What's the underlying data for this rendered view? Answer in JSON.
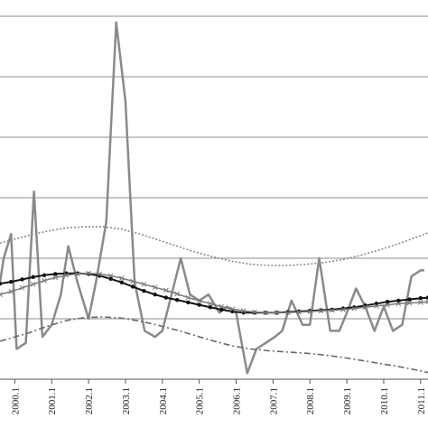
{
  "chart_data": {
    "type": "line",
    "title": "",
    "xlabel": "",
    "ylabel": "",
    "x_tick_labels": [
      "2000.1",
      "2001.1",
      "2002.1",
      "2003.1",
      "2004.1",
      "2005.1",
      "2006.1",
      "2007.1",
      "2008.1",
      "2009.1",
      "2010.1",
      "2011.1"
    ],
    "x_range": [
      1999.7,
      2011.3
    ],
    "ylim": [
      0,
      6
    ],
    "grid": true,
    "legend": "none",
    "series": [
      {
        "style": "solid-gray",
        "color": "#8a8a8a",
        "x": [
          1999.7,
          1999.8,
          2000.0,
          2000.15,
          2000.4,
          2000.62,
          2000.85,
          2001.1,
          2001.35,
          2001.55,
          2001.8,
          2002.1,
          2002.3,
          2002.58,
          2002.85,
          2003.1,
          2003.35,
          2003.62,
          2003.9,
          2004.1,
          2004.35,
          2004.6,
          2004.85,
          2005.1,
          2005.35,
          2005.65,
          2005.85,
          2006.1,
          2006.4,
          2006.65,
          2006.9,
          2007.15,
          2007.35,
          2007.6,
          2007.9,
          2008.1,
          2008.35,
          2008.65,
          2008.9,
          2009.1,
          2009.35,
          2009.6,
          2009.85,
          2010.1,
          2010.35,
          2010.6,
          2010.85,
          2011.1,
          2011.2
        ],
        "y": [
          1.6,
          2.0,
          2.4,
          0.5,
          0.6,
          3.1,
          0.7,
          0.9,
          1.4,
          2.2,
          1.6,
          1.0,
          1.6,
          2.6,
          5.9,
          4.6,
          1.6,
          0.8,
          0.7,
          0.8,
          1.4,
          2.0,
          1.4,
          1.3,
          1.4,
          1.1,
          1.2,
          1.1,
          0.1,
          0.5,
          0.6,
          0.7,
          0.8,
          1.3,
          0.9,
          0.9,
          2.0,
          0.8,
          0.8,
          1.1,
          1.5,
          1.2,
          0.8,
          1.2,
          0.8,
          0.9,
          1.7,
          1.8,
          1.8
        ]
      },
      {
        "style": "solid-black-dots",
        "color": "#111111",
        "x": [
          1999.7,
          2000.0,
          2000.3,
          2000.6,
          2000.9,
          2001.2,
          2001.5,
          2001.8,
          2002.1,
          2002.4,
          2002.7,
          2003.0,
          2003.3,
          2003.6,
          2003.9,
          2004.2,
          2004.5,
          2004.8,
          2005.1,
          2005.4,
          2005.7,
          2006.0,
          2006.3,
          2006.6,
          2006.9,
          2007.2,
          2007.5,
          2007.8,
          2008.1,
          2008.4,
          2008.7,
          2009.0,
          2009.3,
          2009.6,
          2009.9,
          2010.2,
          2010.5,
          2010.8,
          2011.1,
          2011.3
        ],
        "y": [
          1.58,
          1.61,
          1.65,
          1.69,
          1.72,
          1.74,
          1.75,
          1.75,
          1.74,
          1.71,
          1.66,
          1.6,
          1.53,
          1.46,
          1.4,
          1.35,
          1.31,
          1.27,
          1.23,
          1.19,
          1.15,
          1.12,
          1.1,
          1.1,
          1.1,
          1.1,
          1.11,
          1.12,
          1.13,
          1.14,
          1.15,
          1.17,
          1.19,
          1.22,
          1.25,
          1.28,
          1.3,
          1.32,
          1.34,
          1.35
        ]
      },
      {
        "style": "solid-gray-crosses",
        "color": "#7a7a7a",
        "x": [
          1999.7,
          2000.0,
          2000.3,
          2000.6,
          2000.9,
          2001.2,
          2001.5,
          2001.8,
          2002.1,
          2002.4,
          2002.7,
          2003.0,
          2003.3,
          2003.6,
          2003.9,
          2004.2,
          2004.5,
          2004.8,
          2005.1,
          2005.4,
          2005.7,
          2006.0,
          2006.3,
          2006.6,
          2006.9,
          2007.2,
          2007.5,
          2007.8,
          2008.1,
          2008.4,
          2008.7,
          2009.0,
          2009.3,
          2009.6,
          2009.9,
          2010.2,
          2010.5,
          2010.8,
          2011.1,
          2011.3
        ],
        "y": [
          1.4,
          1.45,
          1.51,
          1.57,
          1.63,
          1.68,
          1.72,
          1.74,
          1.75,
          1.74,
          1.71,
          1.67,
          1.62,
          1.57,
          1.52,
          1.47,
          1.41,
          1.35,
          1.3,
          1.25,
          1.2,
          1.16,
          1.13,
          1.11,
          1.1,
          1.1,
          1.1,
          1.11,
          1.12,
          1.13,
          1.14,
          1.15,
          1.17,
          1.19,
          1.21,
          1.23,
          1.25,
          1.26,
          1.27,
          1.28
        ]
      },
      {
        "style": "dotted-gray",
        "color": "#8a8a8a",
        "x": [
          1999.7,
          2000.0,
          2000.5,
          2001.0,
          2001.5,
          2002.0,
          2002.5,
          2003.0,
          2003.5,
          2004.0,
          2004.5,
          2005.0,
          2005.5,
          2006.0,
          2006.5,
          2007.0,
          2007.5,
          2008.0,
          2008.5,
          2009.0,
          2009.5,
          2010.0,
          2010.5,
          2011.0,
          2011.3
        ],
        "y": [
          2.25,
          2.3,
          2.38,
          2.45,
          2.5,
          2.52,
          2.52,
          2.48,
          2.4,
          2.3,
          2.2,
          2.1,
          2.02,
          1.95,
          1.9,
          1.88,
          1.88,
          1.9,
          1.93,
          1.98,
          2.05,
          2.14,
          2.24,
          2.35,
          2.42
        ]
      },
      {
        "style": "dash-dot-gray",
        "color": "#6a6a6a",
        "x": [
          1999.7,
          2000.0,
          2000.5,
          2001.0,
          2001.5,
          2002.0,
          2002.5,
          2003.0,
          2003.5,
          2004.0,
          2004.5,
          2005.0,
          2005.5,
          2006.0,
          2006.5,
          2007.0,
          2007.5,
          2008.0,
          2008.5,
          2009.0,
          2009.5,
          2010.0,
          2010.5,
          2011.0,
          2011.3
        ],
        "y": [
          0.63,
          0.68,
          0.77,
          0.88,
          0.97,
          1.02,
          1.03,
          1.01,
          0.96,
          0.89,
          0.81,
          0.72,
          0.63,
          0.55,
          0.5,
          0.47,
          0.45,
          0.43,
          0.4,
          0.36,
          0.31,
          0.26,
          0.21,
          0.15,
          0.11
        ]
      }
    ]
  }
}
